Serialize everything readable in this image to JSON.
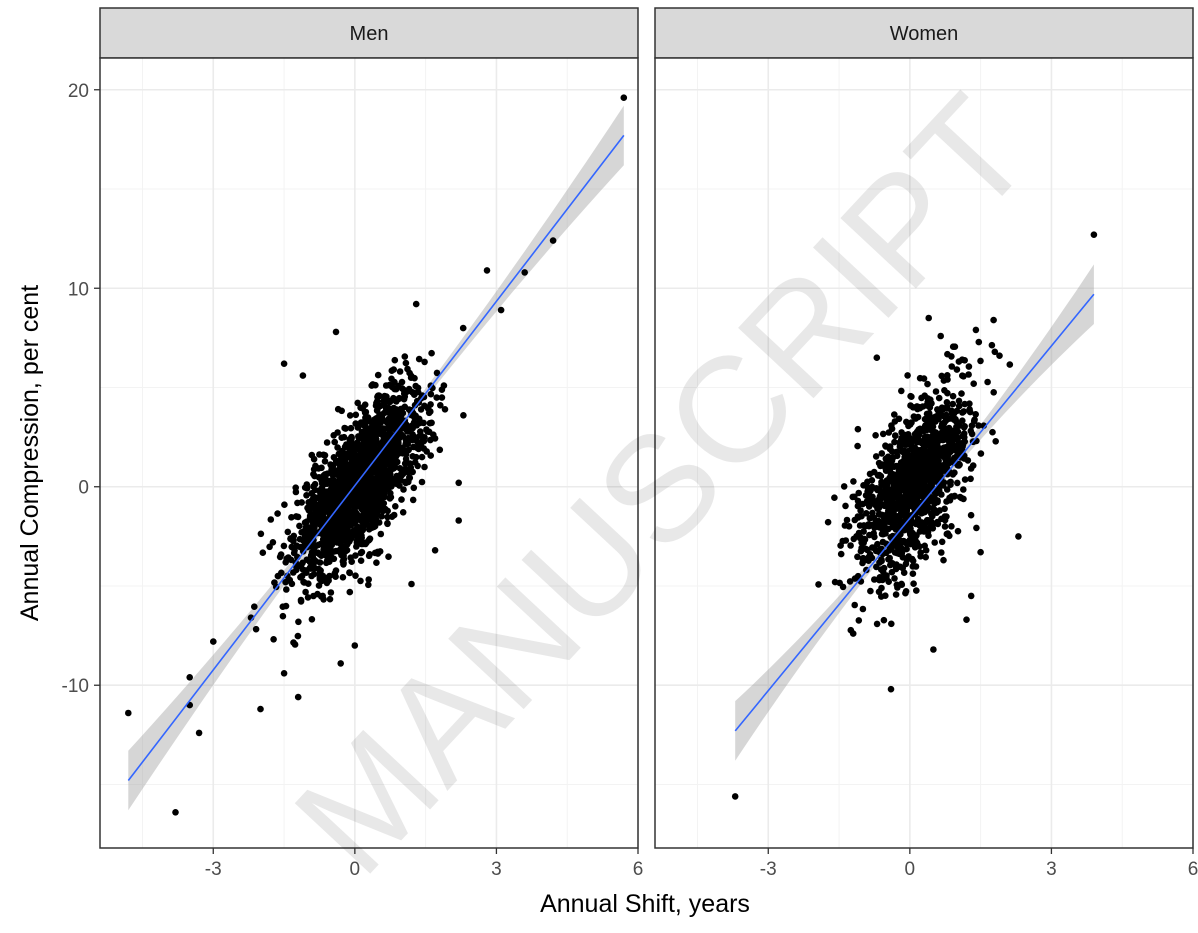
{
  "watermark": "MANUSCRIPT",
  "colors": {
    "strip_fill": "#d9d9d9",
    "grid_major": "#ebebeb",
    "grid_minor": "#f3f3f3",
    "panel_border": "#333333",
    "points": "#000000",
    "fit_line": "#3366ff",
    "confidence_band": "#999999"
  },
  "chart_data": [
    {
      "type": "scatter",
      "facet": "Men",
      "xlabel": "Annual Shift, years",
      "ylabel": "Annual Compression, per cent",
      "xlim": [
        -5.4,
        6.0
      ],
      "ylim": [
        -18.2,
        21.6
      ],
      "x_ticks": [
        -3,
        0,
        3,
        6
      ],
      "y_ticks": [
        -10,
        0,
        10,
        20
      ],
      "grid": true,
      "n_points": 1700,
      "cloud": {
        "center_x": 0.1,
        "center_y": 0.2,
        "sd_x": 0.7,
        "sd_y": 2.4,
        "correlation": 0.72
      },
      "fit": {
        "method": "linear",
        "x_range": [
          -4.8,
          5.7
        ],
        "y_at_x_start": -14.8,
        "y_at_x_end": 17.7,
        "ci_half_width_ends": 1.5
      },
      "outliers": [
        {
          "x": 5.7,
          "y": 19.6
        },
        {
          "x": 4.2,
          "y": 12.4
        },
        {
          "x": 3.6,
          "y": 10.8
        },
        {
          "x": 2.8,
          "y": 10.9
        },
        {
          "x": 3.1,
          "y": 8.9
        },
        {
          "x": 1.3,
          "y": 9.2
        },
        {
          "x": 2.3,
          "y": 3.6
        },
        {
          "x": 2.2,
          "y": 0.2
        },
        {
          "x": 2.2,
          "y": -1.7
        },
        {
          "x": 1.7,
          "y": -3.2
        },
        {
          "x": 1.2,
          "y": -4.9
        },
        {
          "x": -1.5,
          "y": 6.2
        },
        {
          "x": -1.1,
          "y": 5.6
        },
        {
          "x": -0.4,
          "y": 7.8
        },
        {
          "x": -4.8,
          "y": -11.4
        },
        {
          "x": -3.8,
          "y": -16.4
        },
        {
          "x": -3.5,
          "y": -9.6
        },
        {
          "x": -3.5,
          "y": -11.0
        },
        {
          "x": -3.3,
          "y": -12.4
        },
        {
          "x": -3.0,
          "y": -7.8
        },
        {
          "x": -2.0,
          "y": -11.2
        },
        {
          "x": -1.2,
          "y": -10.6
        },
        {
          "x": -0.3,
          "y": -8.9
        },
        {
          "x": 0.0,
          "y": -8.0
        },
        {
          "x": -1.5,
          "y": -9.4
        },
        {
          "x": -2.2,
          "y": -6.6
        }
      ]
    },
    {
      "type": "scatter",
      "facet": "Women",
      "xlabel": "Annual Shift, years",
      "ylabel": "Annual Compression, per cent",
      "xlim": [
        -5.4,
        6.0
      ],
      "ylim": [
        -18.2,
        21.6
      ],
      "x_ticks": [
        -3,
        0,
        3,
        6
      ],
      "y_ticks": [
        -10,
        0,
        10,
        20
      ],
      "grid": true,
      "n_points": 1200,
      "cloud": {
        "center_x": 0.1,
        "center_y": 0.2,
        "sd_x": 0.6,
        "sd_y": 2.4,
        "correlation": 0.6
      },
      "fit": {
        "method": "linear",
        "x_range": [
          -3.7,
          3.9
        ],
        "y_at_x_start": -12.3,
        "y_at_x_end": 9.7,
        "ci_half_width_ends": 1.5
      },
      "outliers": [
        {
          "x": 3.9,
          "y": 12.7
        },
        {
          "x": 0.4,
          "y": 8.5
        },
        {
          "x": -0.7,
          "y": 6.5
        },
        {
          "x": 1.4,
          "y": 7.9
        },
        {
          "x": 1.8,
          "y": 6.8
        },
        {
          "x": 1.9,
          "y": 6.6
        },
        {
          "x": -3.7,
          "y": -15.6
        },
        {
          "x": -1.2,
          "y": -7.4
        },
        {
          "x": -0.4,
          "y": -10.2
        },
        {
          "x": 0.5,
          "y": -8.2
        },
        {
          "x": 1.2,
          "y": -6.7
        },
        {
          "x": 1.3,
          "y": -5.5
        },
        {
          "x": 2.3,
          "y": -2.5
        },
        {
          "x": 1.5,
          "y": -3.3
        },
        {
          "x": -1.1,
          "y": 2.9
        },
        {
          "x": -1.1,
          "y": -1.5
        },
        {
          "x": 0.7,
          "y": 3.9
        },
        {
          "x": -0.6,
          "y": -5.1
        }
      ]
    }
  ]
}
